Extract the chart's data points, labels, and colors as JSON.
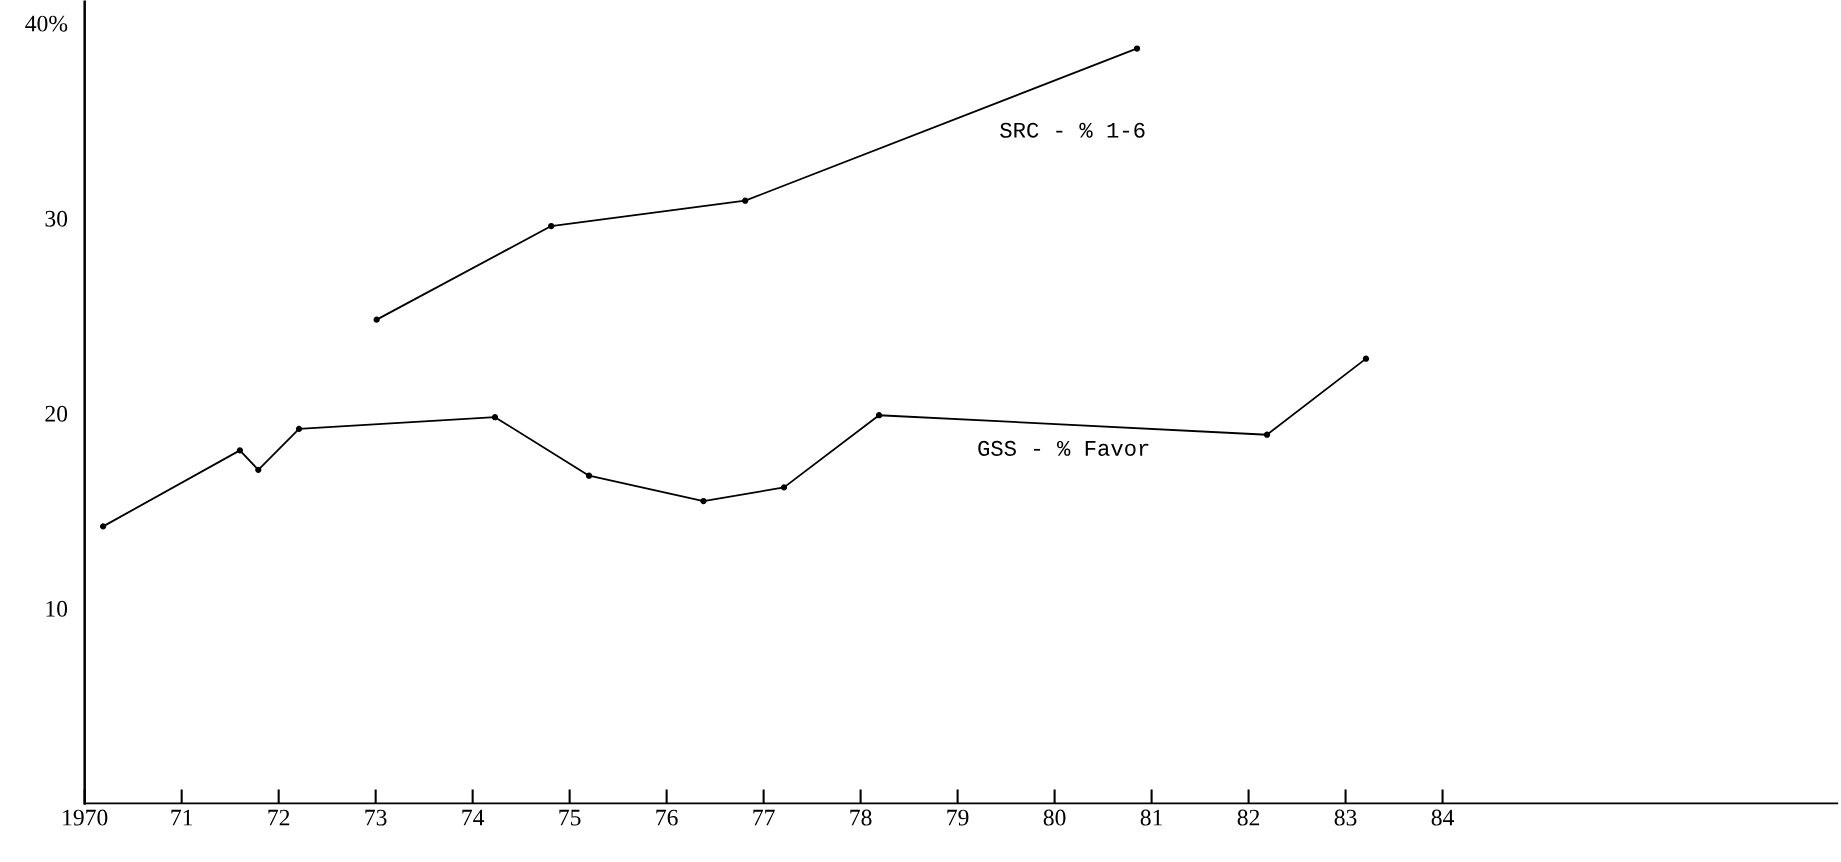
{
  "chart_data": {
    "type": "line",
    "marker": "circle",
    "line_style": "solid",
    "grid": false,
    "legend": false,
    "series": [
      {
        "name": "GSS - % Favor",
        "color": "#000000",
        "x": [
          1970.19,
          1971.6,
          1971.79,
          1972.21,
          1974.23,
          1975.2,
          1976.38,
          1977.21,
          1978.19,
          1982.19,
          1983.21
        ],
        "values": [
          14.2,
          18.1,
          17.1,
          19.2,
          19.8,
          16.8,
          15.5,
          16.2,
          19.9,
          18.9,
          22.8
        ]
      },
      {
        "name": "SRC - % 1-6",
        "color": "#000000",
        "x": [
          1973.01,
          1974.81,
          1976.81,
          1980.85
        ],
        "values": [
          24.8,
          29.6,
          30.9,
          38.7
        ]
      }
    ],
    "xlim": [
      1970,
      1988.07
    ],
    "xticks": [
      {
        "value": 1970,
        "label": "1970"
      },
      {
        "value": 1971,
        "label": "71"
      },
      {
        "value": 1972,
        "label": "72"
      },
      {
        "value": 1973,
        "label": "73"
      },
      {
        "value": 1974,
        "label": "74"
      },
      {
        "value": 1975,
        "label": "75"
      },
      {
        "value": 1976,
        "label": "76"
      },
      {
        "value": 1977,
        "label": "77"
      },
      {
        "value": 1978,
        "label": "78"
      },
      {
        "value": 1979,
        "label": "79"
      },
      {
        "value": 1980,
        "label": "80"
      },
      {
        "value": 1981,
        "label": "81"
      },
      {
        "value": 1982,
        "label": "82"
      },
      {
        "value": 1983,
        "label": "83"
      },
      {
        "value": 1984,
        "label": "84"
      }
    ],
    "ylim": [
      0,
      41.1
    ],
    "yticks": [
      10,
      20,
      30,
      {
        "value": 40,
        "label": "40%"
      }
    ]
  }
}
